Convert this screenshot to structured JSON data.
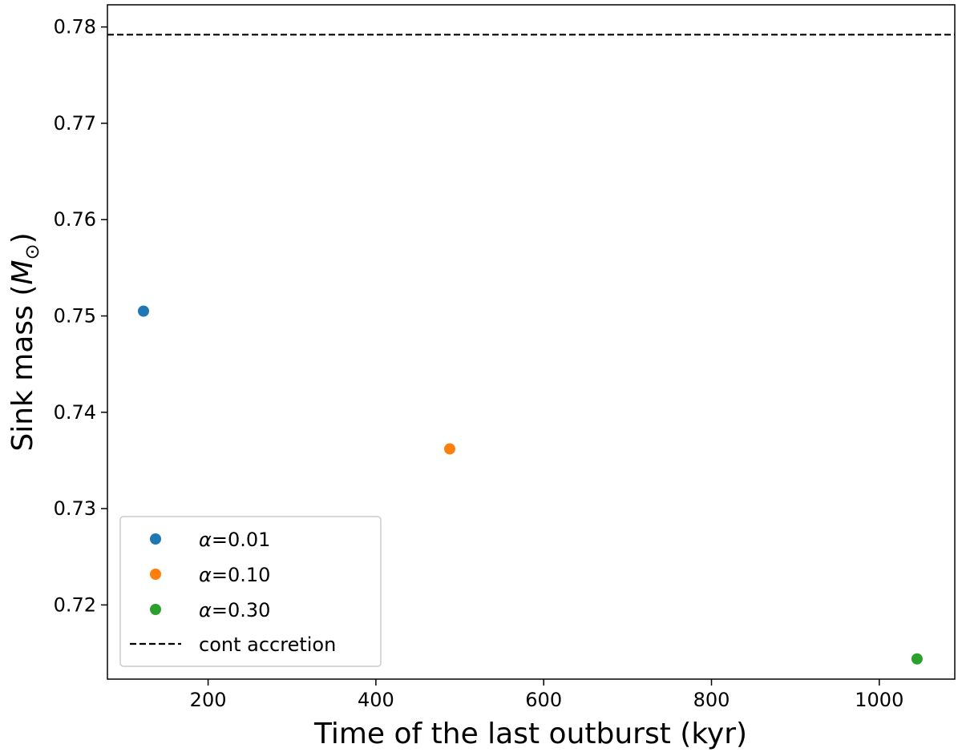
{
  "chart_data": {
    "type": "scatter",
    "title": "",
    "xlabel": "Time of the last outburst (kyr)",
    "ylabel_main": "Sink mass (",
    "ylabel_symbol": "M",
    "ylabel_subscript": "⊙",
    "ylabel_close": ")",
    "xlim": [
      80,
      1090
    ],
    "ylim": [
      0.7123,
      0.7823
    ],
    "xticks": [
      200,
      400,
      600,
      800,
      1000
    ],
    "yticks": [
      0.72,
      0.73,
      0.74,
      0.75,
      0.76,
      0.77,
      0.78
    ],
    "xtick_labels": [
      "200",
      "400",
      "600",
      "800",
      "1000"
    ],
    "ytick_labels": [
      "0.72",
      "0.73",
      "0.74",
      "0.75",
      "0.76",
      "0.77",
      "0.78"
    ],
    "grid": false,
    "legend_position": "lower-left",
    "series": [
      {
        "name": "α=0.01",
        "symbol": "α",
        "text": "=0.01",
        "color": "#1f77b4",
        "points": [
          [
            123,
            0.7505
          ]
        ]
      },
      {
        "name": "α=0.10",
        "symbol": "α",
        "text": "=0.10",
        "color": "#ff7f0e",
        "points": [
          [
            488,
            0.7362
          ]
        ]
      },
      {
        "name": "α=0.30",
        "symbol": "α",
        "text": "=0.30",
        "color": "#2ca02c",
        "points": [
          [
            1045,
            0.7144
          ]
        ]
      }
    ],
    "reference_line": {
      "name": "cont accretion",
      "y": 0.7792,
      "color": "#000000",
      "style": "dashed"
    }
  }
}
